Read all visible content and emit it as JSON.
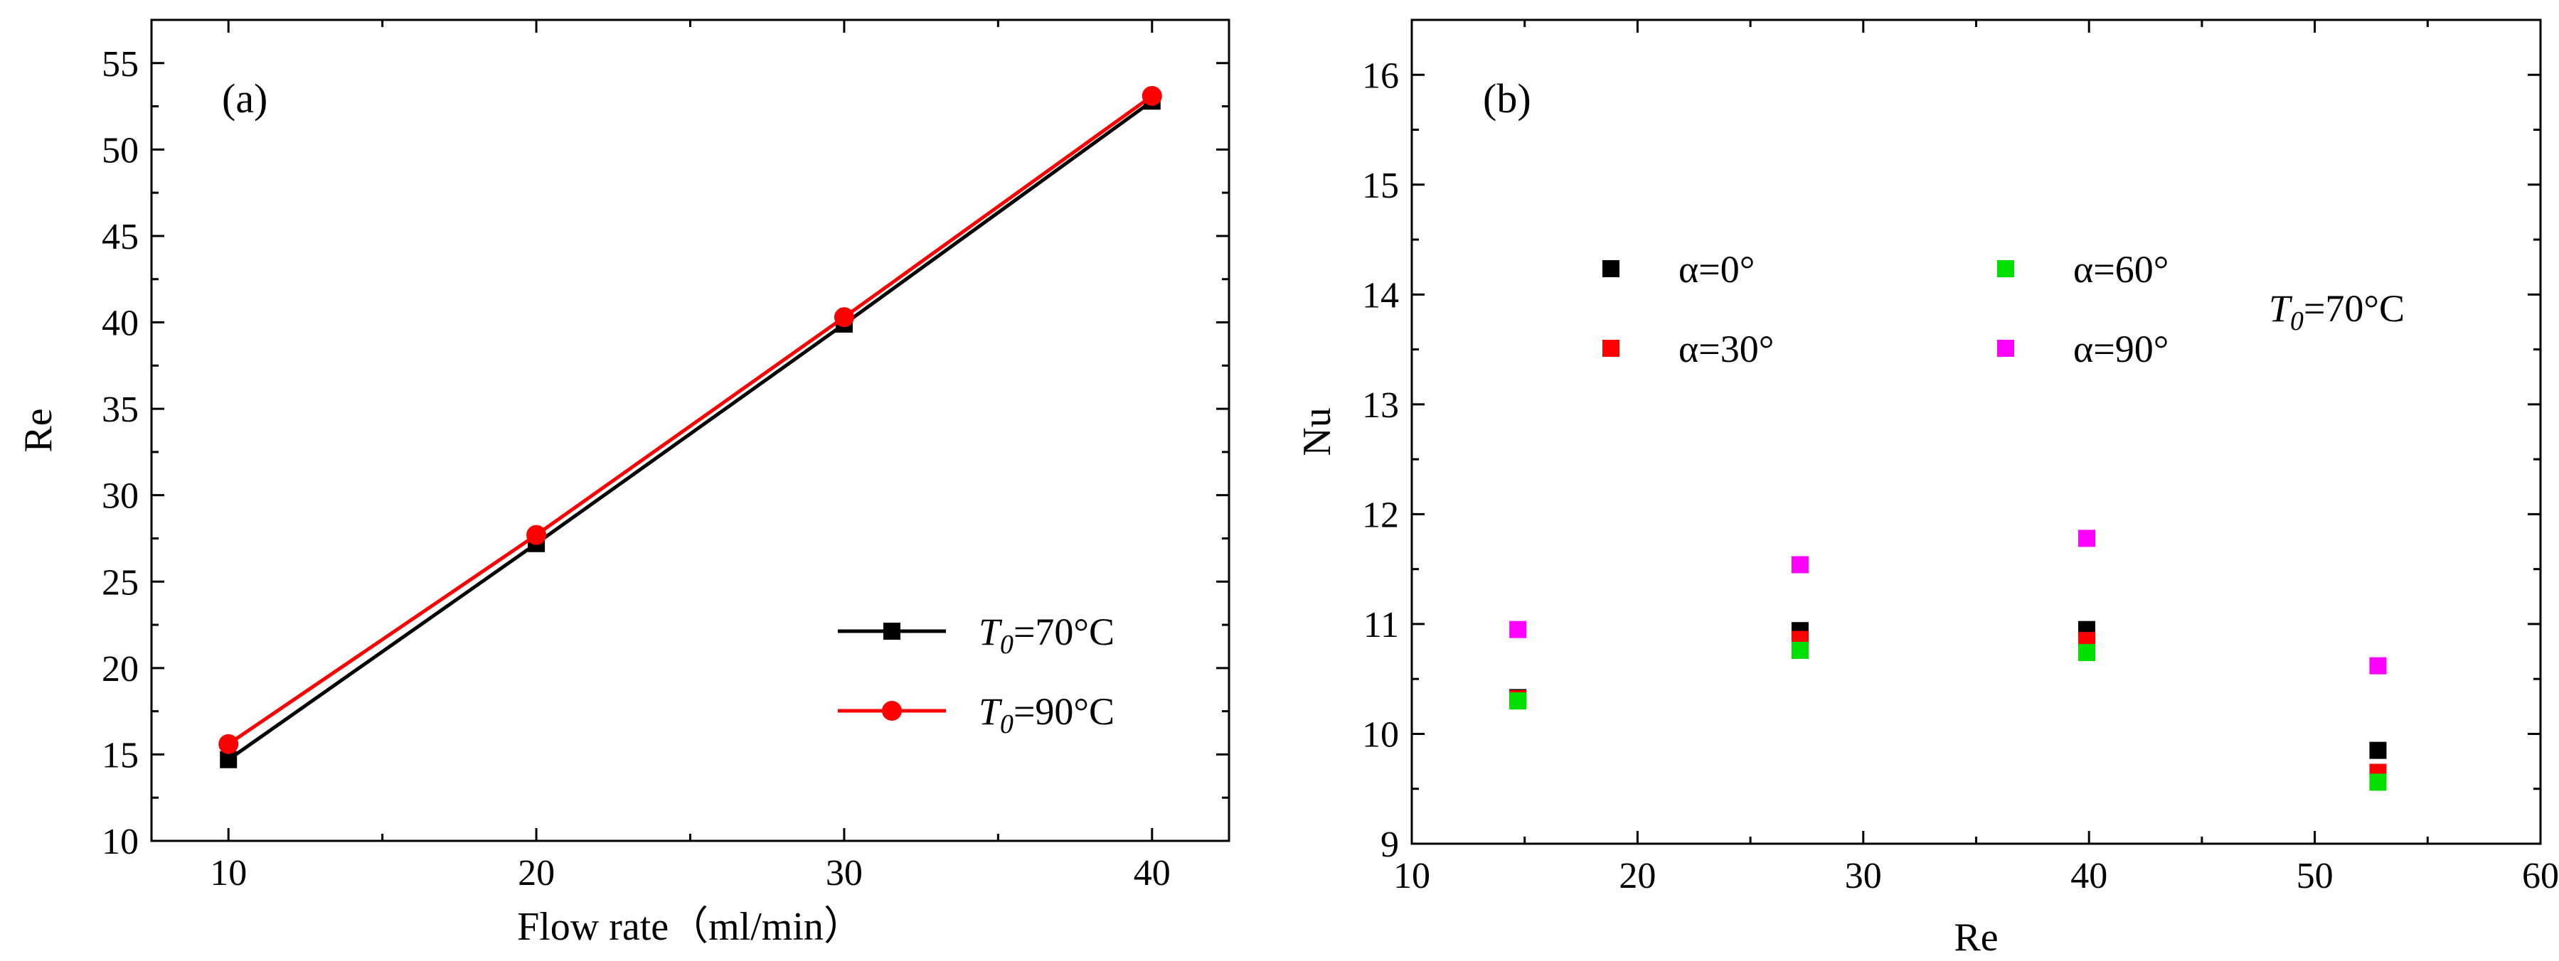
{
  "chart_data": [
    {
      "type": "line",
      "panel_label": "(a)",
      "xlabel": "Flow rate（ml/min）",
      "ylabel": "Re",
      "xlim": [
        7.5,
        42.5
      ],
      "ylim": [
        10,
        57.5
      ],
      "xticks": [
        10,
        20,
        30,
        40
      ],
      "xticks_minor": [
        15,
        25,
        35
      ],
      "yticks": [
        10,
        15,
        20,
        25,
        30,
        35,
        40,
        45,
        50,
        55
      ],
      "legend_position": "bottom-right",
      "x": [
        10,
        20,
        30,
        40
      ],
      "series": [
        {
          "name_var": "T",
          "name_sub": "0",
          "name_rest": "=70°C",
          "color": "#000000",
          "marker": "square",
          "values": [
            14.7,
            27.2,
            39.9,
            52.8
          ]
        },
        {
          "name_var": "T",
          "name_sub": "0",
          "name_rest": "=90°C",
          "color": "#ff0000",
          "marker": "circle",
          "values": [
            15.6,
            27.7,
            40.3,
            53.1
          ]
        }
      ]
    },
    {
      "type": "scatter",
      "panel_label": "(b)",
      "xlabel": "Re",
      "ylabel": "Nu",
      "xlim": [
        10,
        60
      ],
      "ylim": [
        9,
        16.5
      ],
      "xticks": [
        10,
        20,
        30,
        40,
        50,
        60
      ],
      "xticks_minor": [
        15,
        25,
        35,
        45,
        55
      ],
      "yticks": [
        9,
        10,
        11,
        12,
        13,
        14,
        15,
        16
      ],
      "annotation": {
        "var": "T",
        "sub": "0",
        "rest": "=70°C"
      },
      "legend_position": "top",
      "series": [
        {
          "name": "α=0°",
          "color": "#000000",
          "marker": "square",
          "x": [
            14.7,
            27.2,
            39.9,
            52.8
          ],
          "y": [
            10.33,
            10.94,
            10.95,
            9.85
          ]
        },
        {
          "name": "α=30°",
          "color": "#ff0000",
          "marker": "square",
          "x": [
            14.7,
            27.2,
            39.9,
            52.8
          ],
          "y": [
            10.32,
            10.86,
            10.85,
            9.65
          ]
        },
        {
          "name": "α=60°",
          "color": "#00e000",
          "marker": "square",
          "x": [
            14.7,
            27.2,
            39.9,
            52.8
          ],
          "y": [
            10.3,
            10.76,
            10.74,
            9.56
          ]
        },
        {
          "name": "α=90°",
          "color": "#ff00ff",
          "marker": "square",
          "x": [
            14.7,
            27.2,
            39.9,
            52.8
          ],
          "y": [
            10.95,
            11.54,
            11.78,
            10.62
          ]
        }
      ]
    }
  ]
}
